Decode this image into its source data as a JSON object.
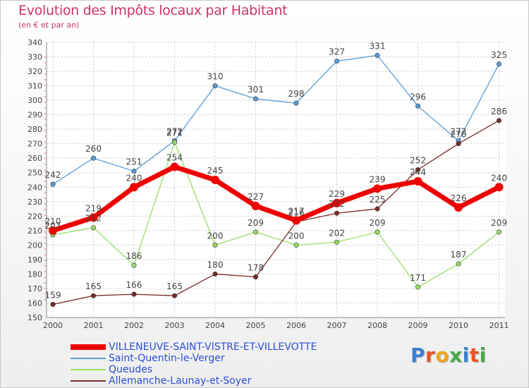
{
  "title": "Evolution des Impôts locaux par Habitant",
  "subtitle": "(en € et par an)",
  "logo_text": "Proxiti",
  "chart_data": {
    "type": "line",
    "x": [
      "2000",
      "2001",
      "2002",
      "2003",
      "2004",
      "2005",
      "2006",
      "2007",
      "2008",
      "2009",
      "2010",
      "2011"
    ],
    "ylim": [
      150,
      340
    ],
    "ytick_step": 10,
    "grid": true,
    "legend_position": "bottom-left",
    "series": [
      {
        "name": "VILLENEUVE-SAINT-VISTRE-ET-VILLEVOTTE",
        "color": "#ee0000",
        "values": [
          210,
          219,
          240,
          254,
          245,
          227,
          217,
          229,
          239,
          244,
          226,
          240
        ]
      },
      {
        "name": "Saint-Quentin-le-Verger",
        "color": "#5b9bd5",
        "values": [
          242,
          260,
          251,
          272,
          310,
          301,
          298,
          327,
          331,
          296,
          272,
          325
        ]
      },
      {
        "name": "Queudes",
        "color": "#99dd66",
        "values": [
          207,
          212,
          186,
          271,
          200,
          209,
          200,
          202,
          209,
          171,
          187,
          209
        ]
      },
      {
        "name": "Allemanche-Launay-et-Soyer",
        "color": "#7a2a2a",
        "values": [
          159,
          165,
          166,
          165,
          180,
          178,
          216,
          222,
          225,
          252,
          270,
          286
        ]
      }
    ]
  }
}
